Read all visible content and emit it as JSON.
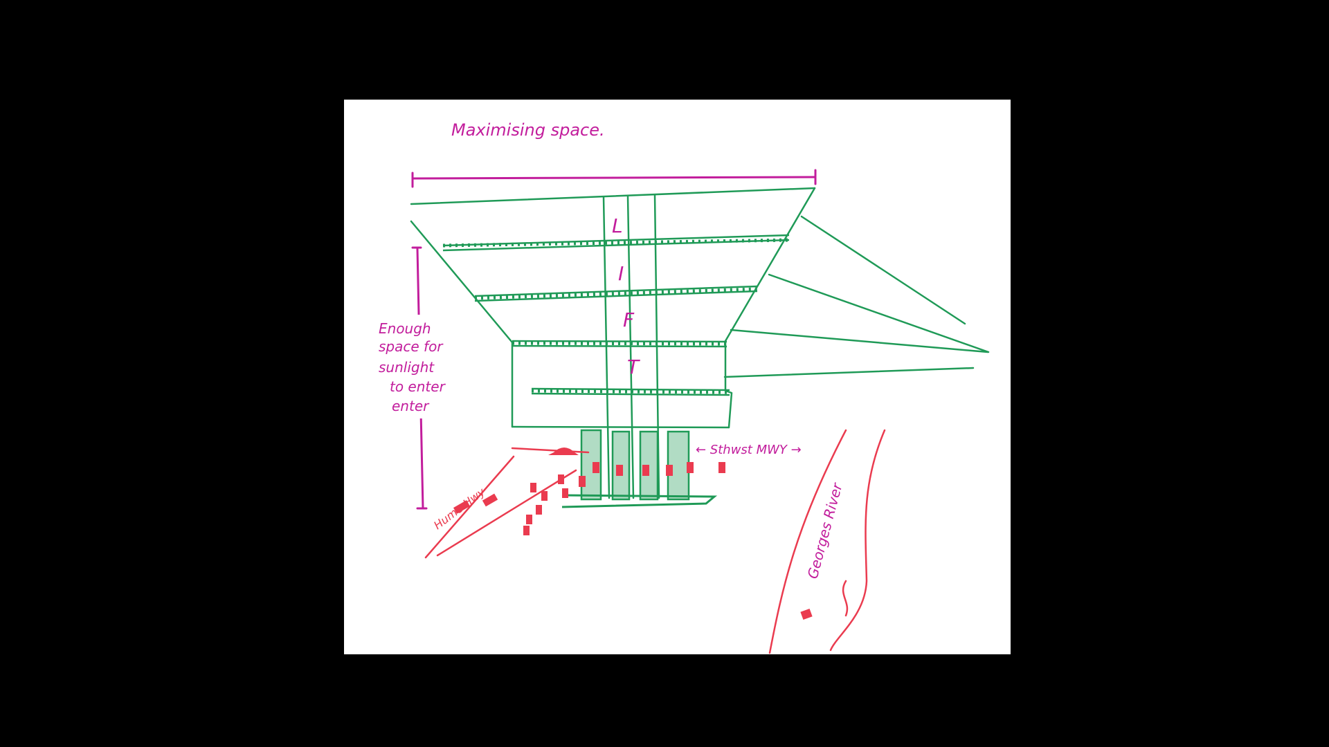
{
  "title": "Maximising space.",
  "lift_letters": [
    "L",
    "I",
    "F",
    "T"
  ],
  "sunlight_note": [
    "Enough",
    "space for",
    "sunlight",
    "to enter",
    "enter"
  ],
  "road_labels": {
    "hume_hwy": "Hume Hwy",
    "sthwst_mwy": "← Sthwst MWY →",
    "georges_river": "Georges River"
  },
  "colors": {
    "background": "#000000",
    "paper": "#ffffff",
    "building_green": "#1f9a57",
    "annotation_magenta": "#c21d9c",
    "road_red": "#ea3b4f"
  }
}
